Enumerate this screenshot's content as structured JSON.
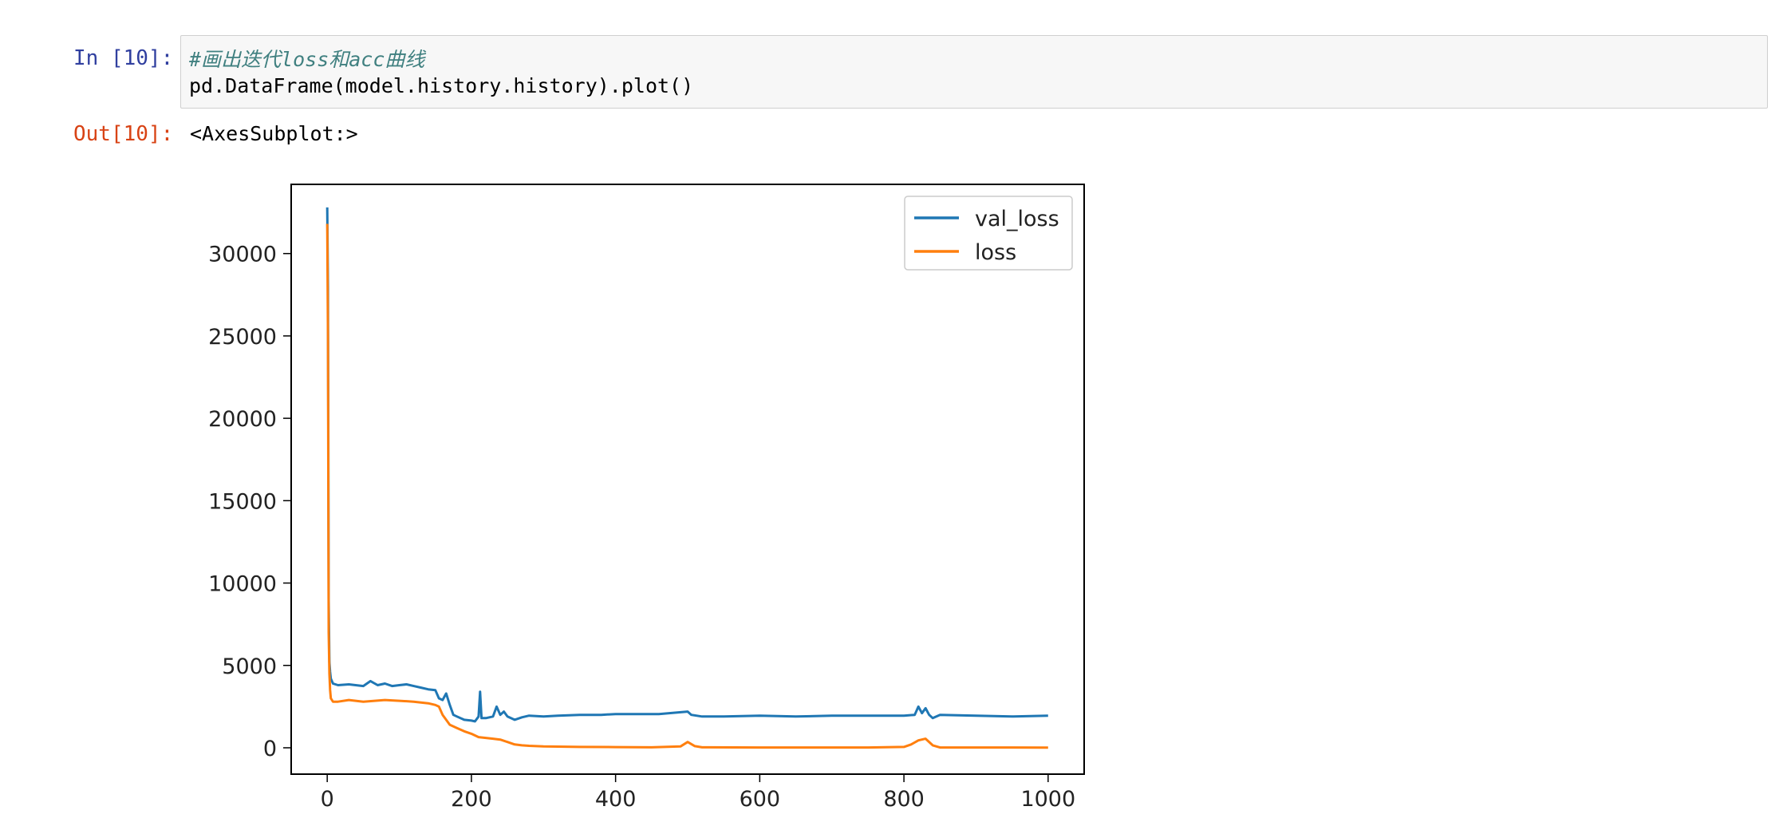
{
  "cell": {
    "in_prompt": "In [10]:",
    "comment": "#画出迭代loss和acc曲线",
    "code": "pd.DataFrame(model.history.history).plot()",
    "out_prompt": "Out[10]:",
    "out_text": "<AxesSubplot:>"
  },
  "chart_data": {
    "type": "line",
    "title": "",
    "xlabel": "",
    "ylabel": "",
    "xlim": [
      -50,
      1050
    ],
    "ylim": [
      -1600,
      34200
    ],
    "xticks": [
      0,
      200,
      400,
      600,
      800,
      1000
    ],
    "yticks": [
      0,
      5000,
      10000,
      15000,
      20000,
      25000,
      30000
    ],
    "legend_position": "top-right",
    "grid": false,
    "series": [
      {
        "name": "val_loss",
        "color": "#1f77b4",
        "points": [
          [
            0,
            32800
          ],
          [
            1,
            28000
          ],
          [
            2,
            9000
          ],
          [
            3,
            5200
          ],
          [
            4,
            4600
          ],
          [
            5,
            4200
          ],
          [
            8,
            3900
          ],
          [
            15,
            3800
          ],
          [
            30,
            3850
          ],
          [
            50,
            3750
          ],
          [
            60,
            4050
          ],
          [
            70,
            3800
          ],
          [
            80,
            3900
          ],
          [
            90,
            3750
          ],
          [
            100,
            3800
          ],
          [
            110,
            3850
          ],
          [
            120,
            3750
          ],
          [
            130,
            3650
          ],
          [
            140,
            3550
          ],
          [
            150,
            3500
          ],
          [
            155,
            3000
          ],
          [
            160,
            2900
          ],
          [
            165,
            3300
          ],
          [
            170,
            2600
          ],
          [
            175,
            2000
          ],
          [
            180,
            1900
          ],
          [
            190,
            1700
          ],
          [
            200,
            1650
          ],
          [
            205,
            1600
          ],
          [
            210,
            1900
          ],
          [
            212,
            3400
          ],
          [
            214,
            1800
          ],
          [
            220,
            1800
          ],
          [
            230,
            1900
          ],
          [
            235,
            2500
          ],
          [
            240,
            2000
          ],
          [
            245,
            2200
          ],
          [
            250,
            1900
          ],
          [
            260,
            1700
          ],
          [
            270,
            1850
          ],
          [
            280,
            1950
          ],
          [
            300,
            1900
          ],
          [
            320,
            1950
          ],
          [
            350,
            2000
          ],
          [
            380,
            2000
          ],
          [
            400,
            2050
          ],
          [
            430,
            2050
          ],
          [
            460,
            2050
          ],
          [
            500,
            2200
          ],
          [
            505,
            2000
          ],
          [
            520,
            1900
          ],
          [
            550,
            1900
          ],
          [
            600,
            1950
          ],
          [
            650,
            1900
          ],
          [
            700,
            1950
          ],
          [
            750,
            1950
          ],
          [
            800,
            1950
          ],
          [
            815,
            2000
          ],
          [
            820,
            2500
          ],
          [
            825,
            2100
          ],
          [
            830,
            2400
          ],
          [
            835,
            2000
          ],
          [
            840,
            1800
          ],
          [
            850,
            2000
          ],
          [
            900,
            1950
          ],
          [
            950,
            1900
          ],
          [
            1000,
            1950
          ]
        ]
      },
      {
        "name": "loss",
        "color": "#ff7f0e",
        "points": [
          [
            0,
            31800
          ],
          [
            1,
            25000
          ],
          [
            2,
            7000
          ],
          [
            3,
            4500
          ],
          [
            4,
            3500
          ],
          [
            5,
            3000
          ],
          [
            8,
            2800
          ],
          [
            15,
            2800
          ],
          [
            30,
            2900
          ],
          [
            50,
            2800
          ],
          [
            80,
            2900
          ],
          [
            100,
            2850
          ],
          [
            120,
            2800
          ],
          [
            140,
            2700
          ],
          [
            150,
            2600
          ],
          [
            155,
            2500
          ],
          [
            160,
            2000
          ],
          [
            170,
            1400
          ],
          [
            180,
            1200
          ],
          [
            190,
            1000
          ],
          [
            200,
            850
          ],
          [
            210,
            650
          ],
          [
            220,
            600
          ],
          [
            230,
            550
          ],
          [
            240,
            500
          ],
          [
            250,
            350
          ],
          [
            260,
            200
          ],
          [
            270,
            150
          ],
          [
            280,
            120
          ],
          [
            300,
            80
          ],
          [
            350,
            50
          ],
          [
            400,
            40
          ],
          [
            450,
            30
          ],
          [
            490,
            80
          ],
          [
            500,
            350
          ],
          [
            510,
            100
          ],
          [
            520,
            30
          ],
          [
            600,
            20
          ],
          [
            700,
            20
          ],
          [
            750,
            20
          ],
          [
            800,
            50
          ],
          [
            810,
            200
          ],
          [
            820,
            450
          ],
          [
            830,
            550
          ],
          [
            840,
            150
          ],
          [
            850,
            20
          ],
          [
            900,
            20
          ],
          [
            950,
            20
          ],
          [
            1000,
            10
          ]
        ]
      }
    ]
  }
}
